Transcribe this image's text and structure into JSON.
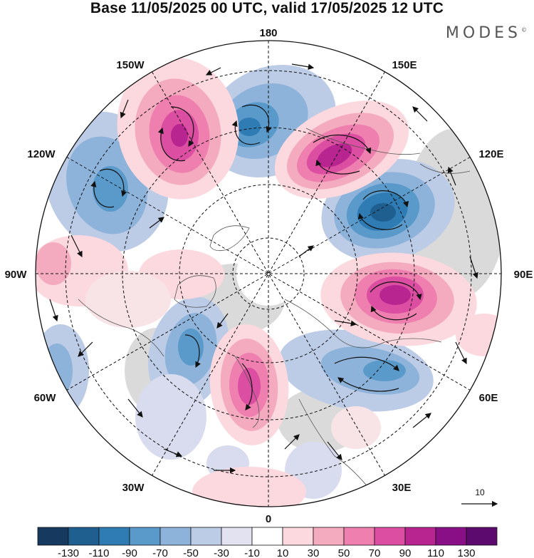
{
  "title": "Base 11/05/2025 00 UTC, valid 17/05/2025 12 UTC",
  "brand": "MODES",
  "brand_mark": "©",
  "longitude_labels": {
    "lon_180": "180",
    "lon_150e": "150E",
    "lon_120e": "120E",
    "lon_90e": "90E",
    "lon_60e": "60E",
    "lon_30e": "30E",
    "lon_0": "0",
    "lon_30w": "30W",
    "lon_60w": "60W",
    "lon_90w": "90W",
    "lon_120w": "120W",
    "lon_150w": "150W"
  },
  "vector_reference": {
    "label": "10"
  },
  "colorbar": {
    "labels": [
      "-130",
      "-110",
      "-90",
      "-70",
      "-50",
      "-30",
      "-10",
      "10",
      "30",
      "50",
      "70",
      "90",
      "110",
      "130"
    ],
    "colors": [
      "#163a5f",
      "#1f5f8f",
      "#2f7cb5",
      "#5a9acb",
      "#8eb3da",
      "#bccbe6",
      "#e2e2f0",
      "#ffffff",
      "#fbd9de",
      "#f5abbf",
      "#ee7fae",
      "#dc4ea1",
      "#b82591",
      "#880f86",
      "#5c0a6e"
    ]
  },
  "map_colors": {
    "neg_light": "#d9dcef",
    "neg_1": "#bccbe6",
    "neg_2": "#8eb3da",
    "neg_3": "#5a9acb",
    "neg_4": "#2f7cb5",
    "neg_5": "#1f5f8f",
    "pos_light": "#f8e3e6",
    "pos_1": "#fbd9de",
    "pos_2": "#f5abbf",
    "pos_3": "#ee7fae",
    "pos_4": "#dc4ea1",
    "pos_5": "#b82591",
    "land_gray": "#dadada"
  }
}
